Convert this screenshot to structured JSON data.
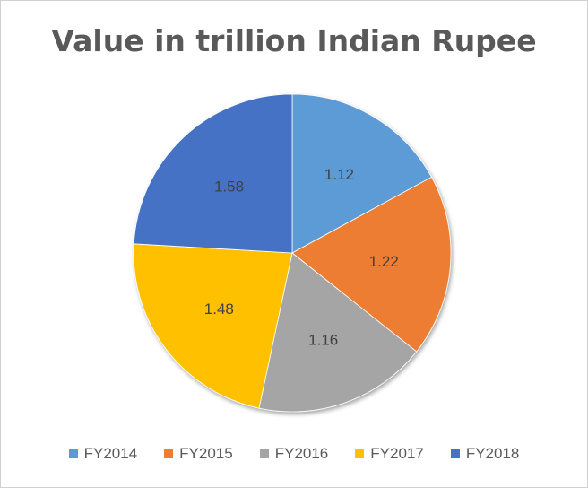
{
  "chart_data": {
    "type": "pie",
    "title": "Value in trillion Indian Rupee",
    "categories": [
      "FY2014",
      "FY2015",
      "FY2016",
      "FY2017",
      "FY2018"
    ],
    "values": [
      1.12,
      1.22,
      1.16,
      1.48,
      1.58
    ],
    "value_labels": [
      "1.12",
      "1.22",
      "1.16",
      "1.48",
      "1.58"
    ],
    "colors": [
      "#5B9BD5",
      "#ED7D31",
      "#A5A5A5",
      "#FFC000",
      "#4472C4"
    ],
    "start_angle": "12 o'clock",
    "direction": "clockwise",
    "legend": "bottom"
  }
}
